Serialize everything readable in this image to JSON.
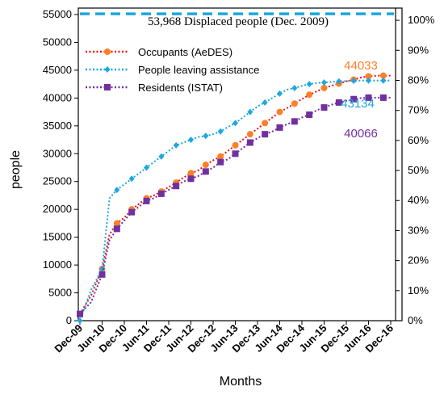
{
  "chart_data": {
    "type": "line",
    "xlabel": "Months",
    "ylabel": "people",
    "ylim": [
      0,
      55000
    ],
    "y_ticks": [
      0,
      5000,
      10000,
      15000,
      20000,
      25000,
      30000,
      35000,
      40000,
      45000,
      50000,
      55000
    ],
    "y2lim_percent": [
      0,
      100
    ],
    "y2_ticks": [
      "0%",
      "10%",
      "20%",
      "30%",
      "40%",
      "50%",
      "60%",
      "70%",
      "80%",
      "90%",
      "100%"
    ],
    "x_ticks": [
      "Dec-09",
      "Jun-10",
      "Dec-10",
      "Jun-11",
      "Dec-11",
      "Jun-12",
      "Dec-12",
      "Jun-13",
      "Dec-13",
      "Jun-14",
      "Dec-14",
      "Jun-15",
      "Dec-15",
      "Jun-16",
      "Dec-16"
    ],
    "grid": false,
    "legend_position": "top-left",
    "reference_line": {
      "value": 53968,
      "label": "53,968 Displaced people (Dec. 2009)",
      "color": "#1ea7e0"
    },
    "x_months": [
      0,
      3,
      6,
      8,
      10,
      12,
      14,
      16,
      18,
      20,
      22,
      24,
      26,
      28,
      30,
      32,
      34,
      36,
      38,
      40,
      42,
      44,
      46,
      48,
      50,
      52,
      54,
      56,
      58,
      60,
      62,
      64,
      66,
      68,
      70,
      72,
      74,
      76,
      78,
      80,
      82,
      84
    ],
    "series": [
      {
        "name": "Occupants (AeDES)",
        "color": "#ff7f27",
        "line_color": "#e81313",
        "marker": "circle",
        "values": [
          1200,
          4500,
          9300,
          15500,
          17500,
          18500,
          20000,
          21000,
          22000,
          22500,
          23200,
          24000,
          24800,
          25700,
          26500,
          27000,
          28000,
          28800,
          29500,
          30500,
          31500,
          32500,
          33500,
          34500,
          35500,
          36500,
          37500,
          38200,
          39000,
          39800,
          40600,
          41200,
          41800,
          42200,
          42600,
          43000,
          43300,
          43700,
          43900,
          44000,
          44033,
          44033
        ],
        "end_label": "44033"
      },
      {
        "name": "People leaving assistance",
        "color": "#1ea7e0",
        "line_color": "#1ea7e0",
        "marker": "diamond",
        "values": [
          0,
          5500,
          9300,
          22000,
          23500,
          24500,
          25500,
          26500,
          27500,
          28500,
          29500,
          30500,
          31500,
          32000,
          32500,
          33000,
          33200,
          33500,
          34000,
          34800,
          35500,
          36500,
          37500,
          38500,
          39200,
          40000,
          40800,
          41500,
          41800,
          42200,
          42500,
          42700,
          42800,
          42900,
          43000,
          43050,
          43100,
          43134,
          43134,
          43134,
          43134,
          43134
        ],
        "end_label": "43134"
      },
      {
        "name": "Residents (ISTAT)",
        "color": "#7030a0",
        "line_color": "#7030a0",
        "marker": "square",
        "values": [
          1200,
          3300,
          8300,
          14500,
          16500,
          18000,
          19500,
          20500,
          21500,
          22000,
          22800,
          23500,
          24200,
          25000,
          25500,
          26000,
          26800,
          27500,
          28500,
          29000,
          30000,
          31000,
          32000,
          32800,
          33500,
          34000,
          34700,
          35300,
          35800,
          36500,
          37000,
          37800,
          38300,
          38800,
          39200,
          39500,
          39800,
          40000,
          40066,
          40066,
          40066,
          40066
        ],
        "end_label": "40066"
      }
    ]
  }
}
